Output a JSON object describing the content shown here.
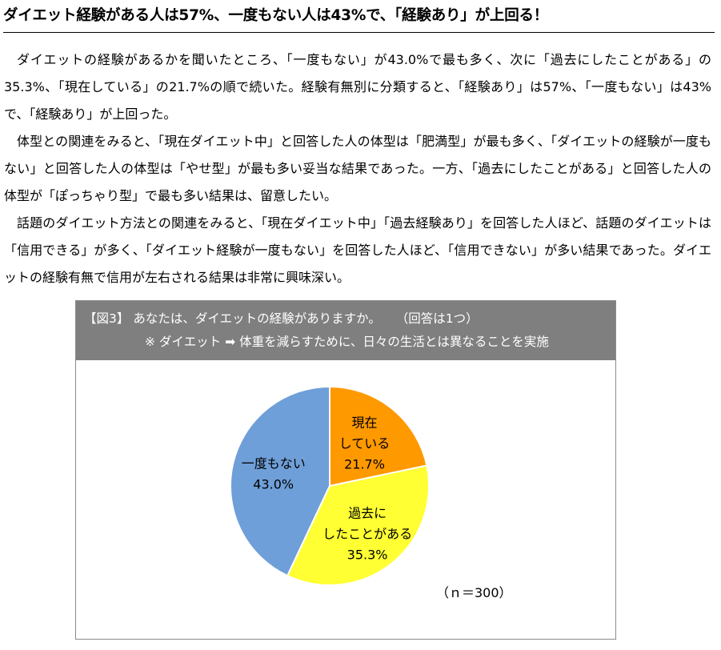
{
  "headline": "ダイエット経験がある人は57%、一度もない人は43%で、「経験あり」が上回る！",
  "paragraphs": [
    "ダイエットの経験があるかを聞いたところ、「一度もない」が43.0%で最も多く、次に「過去にしたことがある」の35.3%、「現在している」の21.7%の順で続いた。経験有無別に分類すると、「経験あり」は57%、「一度もない」は43%で、「経験あり」が上回った。",
    "体型との関連をみると、「現在ダイエット中」と回答した人の体型は「肥満型」が最も多く、「ダイエットの経験が一度もない」と回答した人の体型は「やせ型」が最も多い妥当な結果であった。一方、「過去にしたことがある」と回答した人の体型が「ぽっちゃり型」で最も多い結果は、留意したい。",
    "話題のダイエット方法との関連をみると、「現在ダイエット中」「過去経験あり」を回答した人ほど、話題のダイエットは「信用できる」が多く、「ダイエット経験が一度もない」を回答した人ほど、「信用できない」が多い結果であった。ダイエットの経験有無で信用が左右される結果は非常に興味深い。"
  ],
  "figure": {
    "label": "【図3】",
    "question": "あなたは、ダイエットの経験がありますか。",
    "answer_note": "（回答は1つ）",
    "note_prefix": "※ ダイエット",
    "arrow_icon": "➡",
    "definition": "体重を減らすために、日々の生活とは異なることを実施",
    "header_bg": "#7f7f7f",
    "n_label": "（ｎ＝300）"
  },
  "chart_data": {
    "type": "pie",
    "start": "12 o'clock",
    "direction": "clockwise",
    "n": 300,
    "slices": [
      {
        "label_lines": [
          "現在",
          "している"
        ],
        "value_label": "21.7%",
        "value": 21.7,
        "color": "#ff9900"
      },
      {
        "label_lines": [
          "過去に",
          "したことがある"
        ],
        "value_label": "35.3%",
        "value": 35.3,
        "color": "#ffff33"
      },
      {
        "label_lines": [
          "一度もない"
        ],
        "value_label": "43.0%",
        "value": 43.0,
        "color": "#6f9fd8"
      }
    ]
  }
}
